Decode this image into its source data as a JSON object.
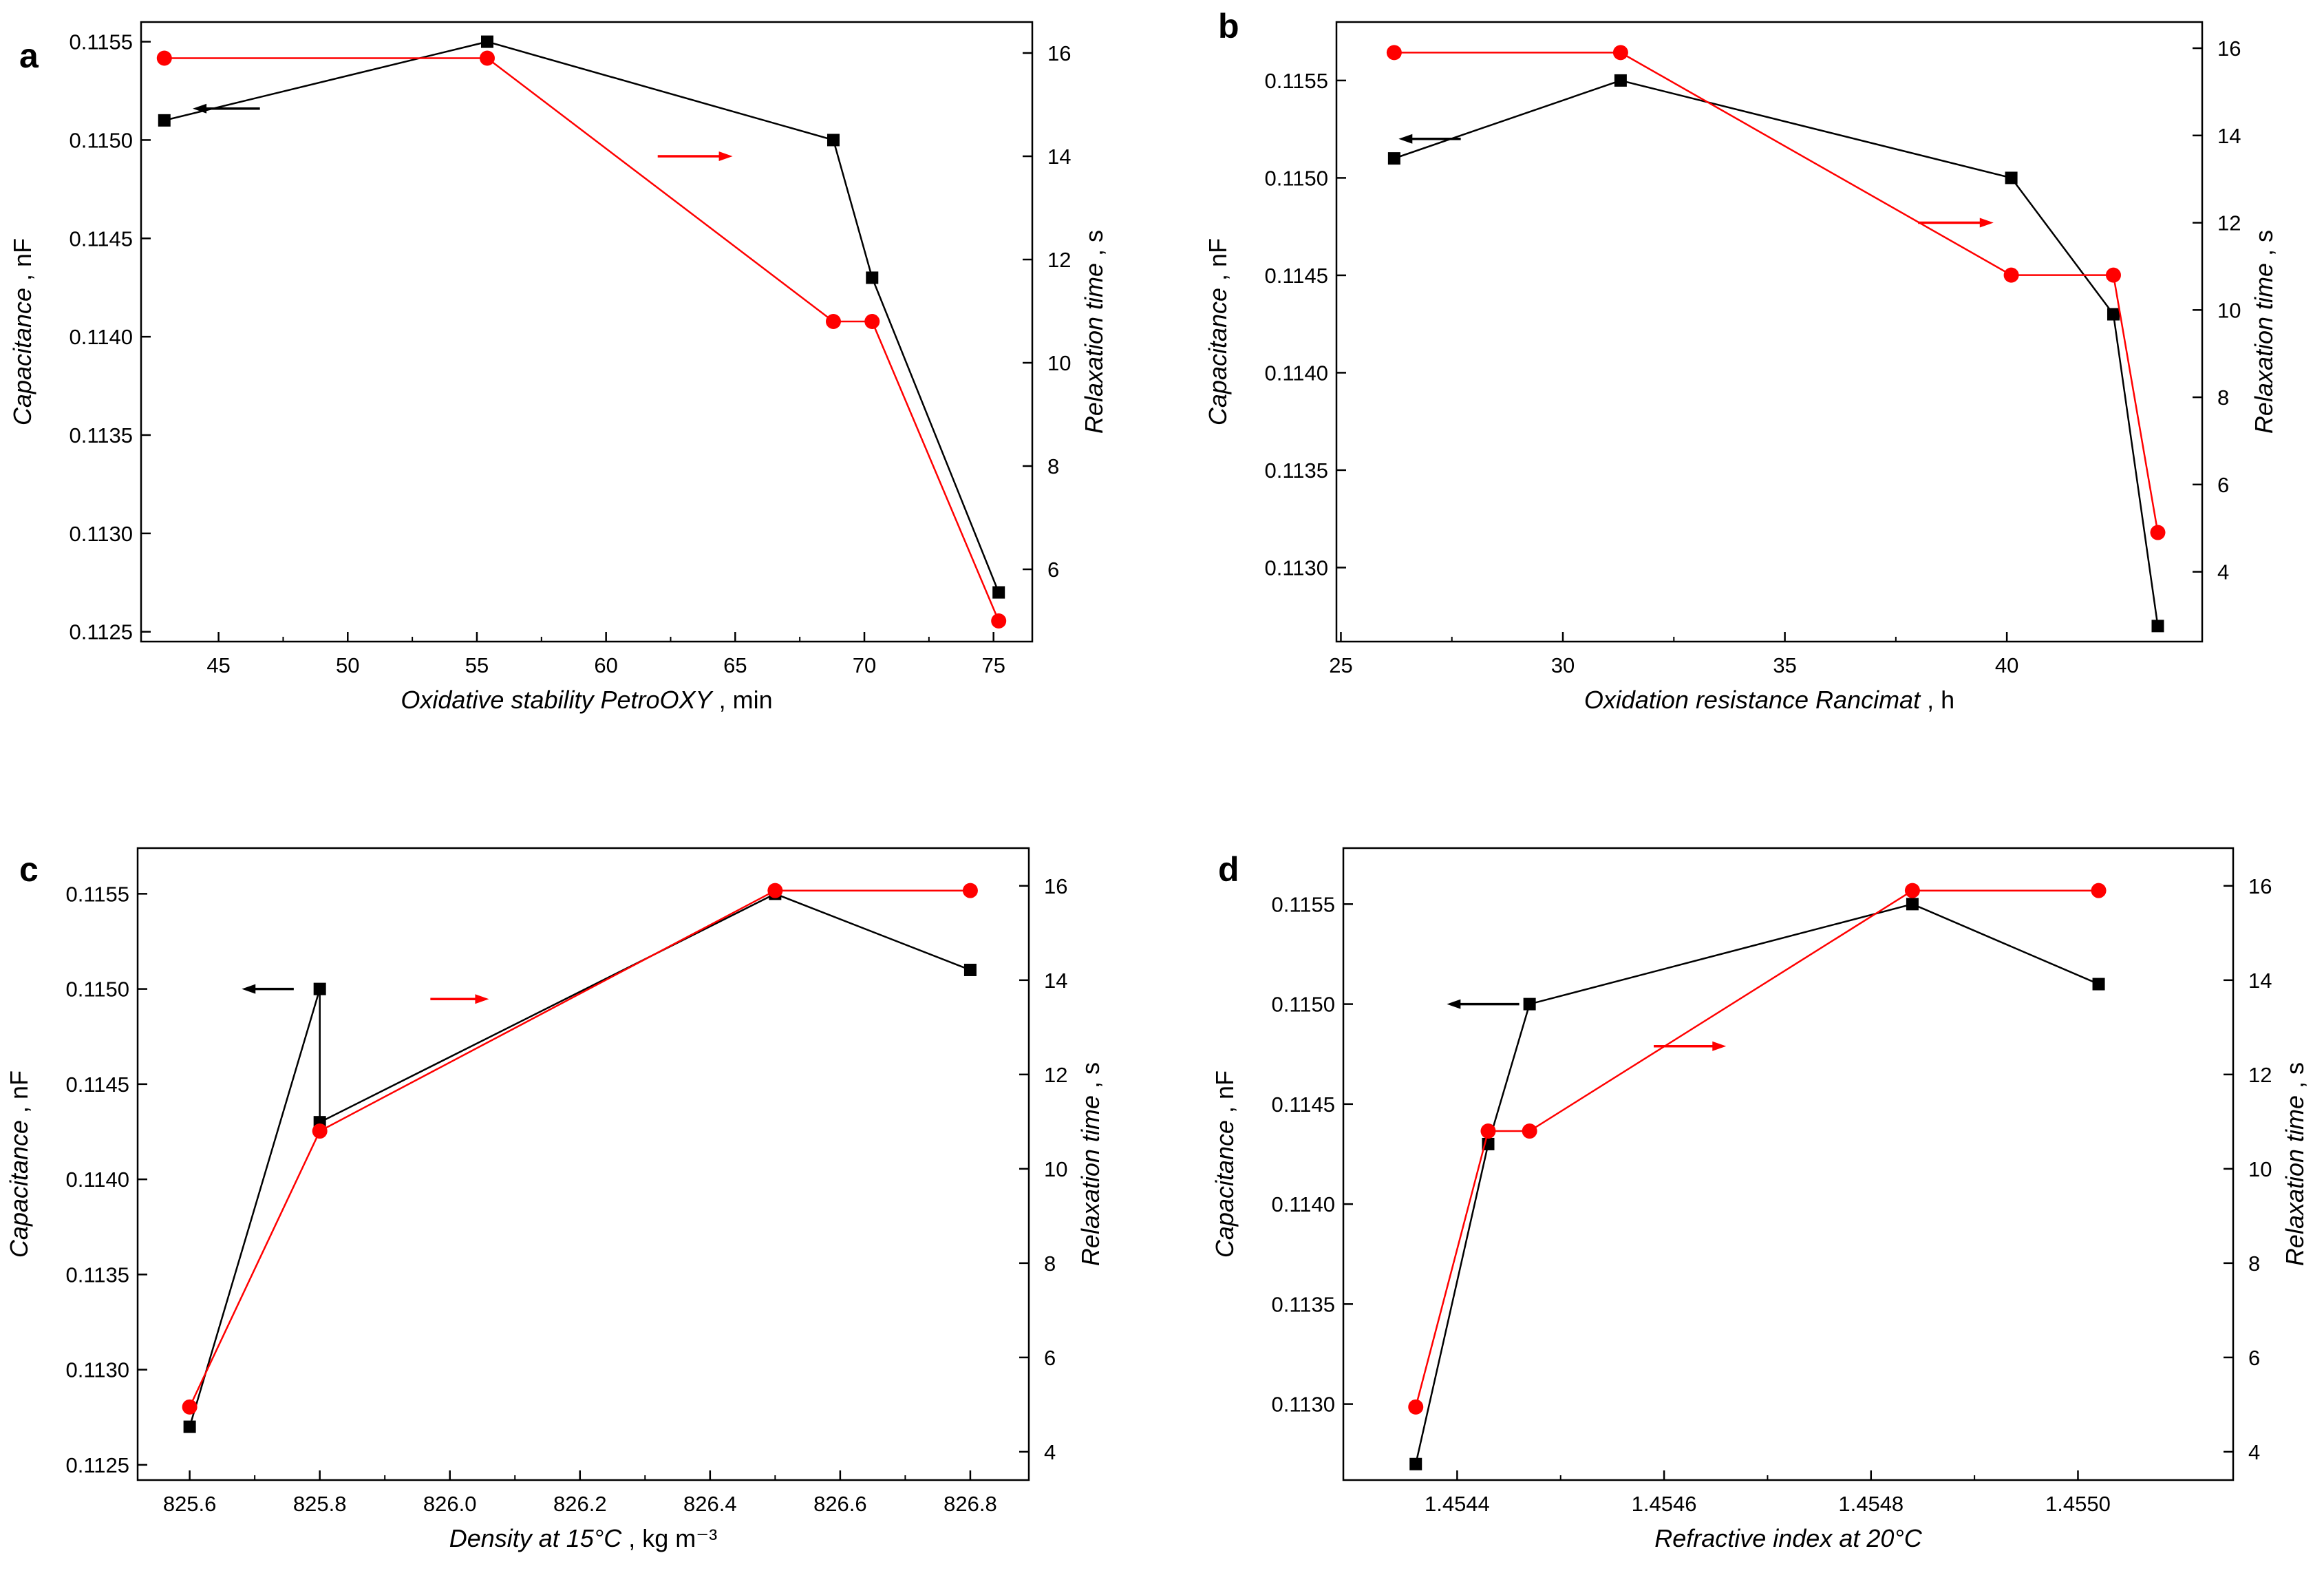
{
  "chart_data": [
    {
      "panel": "a",
      "type": "line",
      "xlabel": "Oxidative stability PetroOXY",
      "xunit": "min",
      "ylabel": "Capacitance",
      "yunit": "nF",
      "y2label": "Relaxation time",
      "y2unit": "s",
      "xlim": [
        42,
        76.5
      ],
      "ylim": [
        0.11245,
        0.1156
      ],
      "y2lim": [
        4.6,
        16.6
      ],
      "xticks": [
        45,
        50,
        55,
        60,
        65,
        70,
        75
      ],
      "yticks": [
        0.1125,
        0.113,
        0.1135,
        0.114,
        0.1145,
        0.115,
        0.1155
      ],
      "y2ticks": [
        6,
        8,
        10,
        12,
        14,
        16
      ],
      "xtick_labels": [
        "45",
        "50",
        "55",
        "60",
        "65",
        "70",
        "75"
      ],
      "ytick_labels": [
        "0.1125",
        "0.1130",
        "0.1135",
        "0.1140",
        "0.1145",
        "0.1150",
        "0.1155"
      ],
      "y2tick_labels": [
        "6",
        "8",
        "10",
        "12",
        "14",
        "16"
      ],
      "series": [
        {
          "name": "Capacitance",
          "axis": "left",
          "color": "#000000",
          "marker": "square",
          "x": [
            42.9,
            55.4,
            68.8,
            70.3,
            75.2
          ],
          "y": [
            0.1151,
            0.1155,
            0.115,
            0.1143,
            0.1127
          ]
        },
        {
          "name": "Relaxation time",
          "axis": "right",
          "color": "#ff0000",
          "marker": "circle",
          "x": [
            42.9,
            55.4,
            68.8,
            70.3,
            75.2
          ],
          "y": [
            15.9,
            15.9,
            10.8,
            10.8,
            5.0
          ]
        }
      ],
      "arrows": [
        {
          "series": "Capacitance",
          "direction": "left",
          "x": 44.0,
          "x2": 46.6,
          "y": 0.11516
        },
        {
          "series": "Relaxation time",
          "direction": "right",
          "x": 62.0,
          "x2": 64.9,
          "y2": 14.0
        }
      ]
    },
    {
      "panel": "b",
      "type": "line",
      "xlabel": "Oxidation resistance Rancimat",
      "xunit": "h",
      "ylabel": "Capacitance",
      "yunit": "nF",
      "y2label": "Relaxation time",
      "y2unit": "s",
      "xlim": [
        24.9,
        44.4
      ],
      "ylim": [
        0.11262,
        0.1158
      ],
      "y2lim": [
        2.4,
        16.6
      ],
      "xticks": [
        25,
        30,
        35,
        40
      ],
      "yticks": [
        0.113,
        0.1135,
        0.114,
        0.1145,
        0.115,
        0.1155
      ],
      "y2ticks": [
        4,
        6,
        8,
        10,
        12,
        14,
        16
      ],
      "xtick_labels": [
        "25",
        "30",
        "35",
        "40"
      ],
      "ytick_labels": [
        "0.1130",
        "0.1135",
        "0.1140",
        "0.1145",
        "0.1150",
        "0.1155"
      ],
      "y2tick_labels": [
        "4",
        "6",
        "8",
        "10",
        "12",
        "14",
        "16"
      ],
      "series": [
        {
          "name": "Capacitance",
          "axis": "left",
          "color": "#000000",
          "marker": "square",
          "x": [
            26.2,
            31.3,
            40.1,
            42.4,
            43.4
          ],
          "y": [
            0.1151,
            0.1155,
            0.115,
            0.1143,
            0.1127
          ]
        },
        {
          "name": "Relaxation time",
          "axis": "right",
          "color": "#ff0000",
          "marker": "circle",
          "x": [
            26.2,
            31.3,
            40.1,
            42.4,
            43.4
          ],
          "y": [
            15.9,
            15.9,
            10.8,
            10.8,
            4.9
          ]
        }
      ],
      "arrows": [
        {
          "series": "Capacitance",
          "direction": "left",
          "x": 26.3,
          "x2": 27.7,
          "y": 0.1152
        },
        {
          "series": "Relaxation time",
          "direction": "right",
          "x": 38.0,
          "x2": 39.7,
          "y2": 12.0
        }
      ]
    },
    {
      "panel": "c",
      "type": "line",
      "xlabel": "Density at 15°C",
      "xunit": "kg m⁻³",
      "ylabel": "Capacitance",
      "yunit": "nF",
      "y2label": "Relaxation time",
      "y2unit": "s",
      "xlim": [
        825.52,
        826.89
      ],
      "ylim": [
        0.11242,
        0.11574
      ],
      "y2lim": [
        3.4,
        16.8
      ],
      "xticks": [
        825.6,
        825.8,
        826.0,
        826.2,
        826.4,
        826.6,
        826.8
      ],
      "yticks": [
        0.1125,
        0.113,
        0.1135,
        0.114,
        0.1145,
        0.115,
        0.1155
      ],
      "y2ticks": [
        4,
        6,
        8,
        10,
        12,
        14,
        16
      ],
      "xtick_labels": [
        "825.6",
        "825.8",
        "826.0",
        "826.2",
        "826.4",
        "826.6",
        "826.8"
      ],
      "ytick_labels": [
        "0.1125",
        "0.1130",
        "0.1135",
        "0.1140",
        "0.1145",
        "0.1150",
        "0.1155"
      ],
      "y2tick_labels": [
        "4",
        "6",
        "8",
        "10",
        "12",
        "14",
        "16"
      ],
      "series": [
        {
          "name": "Capacitance",
          "axis": "left",
          "color": "#000000",
          "marker": "square",
          "x": [
            825.6,
            825.8,
            825.8,
            826.5,
            826.8
          ],
          "y": [
            0.1127,
            0.115,
            0.1143,
            0.1155,
            0.1151
          ]
        },
        {
          "name": "Relaxation time",
          "axis": "right",
          "color": "#ff0000",
          "marker": "circle",
          "x": [
            825.6,
            825.8,
            826.5,
            826.8
          ],
          "y": [
            4.95,
            10.8,
            15.9,
            15.9
          ]
        }
      ],
      "arrows": [
        {
          "series": "Capacitance",
          "direction": "left",
          "x": 825.68,
          "x2": 825.76,
          "y": 0.115
        },
        {
          "series": "Relaxation time",
          "direction": "right",
          "x": 825.97,
          "x2": 826.06,
          "y2": 13.6
        }
      ]
    },
    {
      "panel": "d",
      "type": "line",
      "xlabel": "Refractive index at 20°C",
      "xunit": "",
      "ylabel": "Capacitance",
      "yunit": "nF",
      "y2label": "Relaxation time",
      "y2unit": "s",
      "xlim": [
        1.45429,
        1.45515
      ],
      "ylim": [
        0.11262,
        0.11578
      ],
      "y2lim": [
        3.4,
        16.8
      ],
      "xticks": [
        1.4544,
        1.4546,
        1.4548,
        1.455
      ],
      "yticks": [
        0.113,
        0.1135,
        0.114,
        0.1145,
        0.115,
        0.1155
      ],
      "y2ticks": [
        4,
        6,
        8,
        10,
        12,
        14,
        16
      ],
      "xtick_labels": [
        "1.4544",
        "1.4546",
        "1.4548",
        "1.4550"
      ],
      "ytick_labels": [
        "0.1130",
        "0.1135",
        "0.1140",
        "0.1145",
        "0.1150",
        "0.1155"
      ],
      "y2tick_labels": [
        "4",
        "6",
        "8",
        "10",
        "12",
        "14",
        "16"
      ],
      "series": [
        {
          "name": "Capacitance",
          "axis": "left",
          "color": "#000000",
          "marker": "square",
          "x": [
            1.45436,
            1.45443,
            1.45447,
            1.45484,
            1.45502
          ],
          "y": [
            0.1127,
            0.1143,
            0.115,
            0.1155,
            0.1151
          ]
        },
        {
          "name": "Relaxation time",
          "axis": "right",
          "color": "#ff0000",
          "marker": "circle",
          "x": [
            1.45436,
            1.45443,
            1.45447,
            1.45484,
            1.45502
          ],
          "y": [
            4.95,
            10.8,
            10.8,
            15.9,
            15.9
          ]
        }
      ],
      "arrows": [
        {
          "series": "Capacitance",
          "direction": "left",
          "x": 1.45439,
          "x2": 1.45446,
          "y": 0.115
        },
        {
          "series": "Relaxation time",
          "direction": "right",
          "x": 1.45459,
          "x2": 1.45466,
          "y2": 12.6
        }
      ]
    }
  ]
}
